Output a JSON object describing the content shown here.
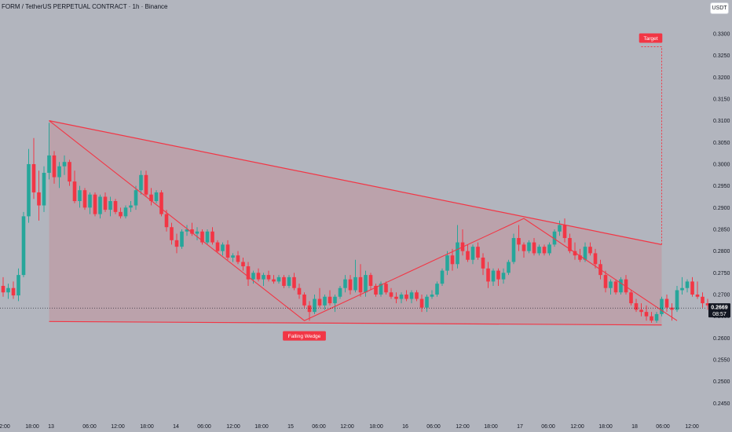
{
  "header": {
    "title": "FORM / TetherUS PERPETUAL CONTRACT · 1h · Binance",
    "currency_button": "USDT"
  },
  "colors": {
    "background": "#b2b5be",
    "up": "#26a69a",
    "down": "#f23645",
    "pattern_line": "#f23645",
    "pattern_fill": "rgba(242,54,69,0.15)",
    "price_tag": "#131722"
  },
  "chart_data": {
    "type": "candlestick",
    "symbol": "FORM / TetherUS PERPETUAL CONTRACT",
    "interval": "1h",
    "exchange": "Binance",
    "ylim": [
      0.242,
      0.3345
    ],
    "y_ticks": [
      "0.3300",
      "0.3250",
      "0.3200",
      "0.3150",
      "0.3100",
      "0.3050",
      "0.3000",
      "0.2950",
      "0.2900",
      "0.2850",
      "0.2800",
      "0.2750",
      "0.2700",
      "0.2650",
      "0.2600",
      "0.2550",
      "0.2500",
      "0.2450"
    ],
    "x_ticks": [
      "2:00",
      "18:00",
      "13",
      "06:00",
      "12:00",
      "18:00",
      "14",
      "06:00",
      "12:00",
      "18:00",
      "15",
      "06:00",
      "12:00",
      "18:00",
      "16",
      "06:00",
      "12:00",
      "18:00",
      "17",
      "06:00",
      "12:00",
      "18:00",
      "18",
      "06:00",
      "12:00"
    ],
    "last_price": "0.2669",
    "countdown": "08:57",
    "candles_ohlc": [
      [
        0.272,
        0.274,
        0.2695,
        0.2705
      ],
      [
        0.2705,
        0.2725,
        0.269,
        0.2715
      ],
      [
        0.2715,
        0.273,
        0.269,
        0.2698
      ],
      [
        0.2698,
        0.276,
        0.2685,
        0.2745
      ],
      [
        0.2745,
        0.289,
        0.274,
        0.288
      ],
      [
        0.288,
        0.3035,
        0.2865,
        0.3
      ],
      [
        0.3,
        0.306,
        0.292,
        0.2935
      ],
      [
        0.2935,
        0.2985,
        0.287,
        0.2905
      ],
      [
        0.2905,
        0.2995,
        0.289,
        0.298
      ],
      [
        0.298,
        0.3095,
        0.2965,
        0.302
      ],
      [
        0.302,
        0.303,
        0.2955,
        0.297
      ],
      [
        0.297,
        0.3005,
        0.2945,
        0.2995
      ],
      [
        0.2995,
        0.302,
        0.2975,
        0.3005
      ],
      [
        0.3005,
        0.301,
        0.295,
        0.296
      ],
      [
        0.296,
        0.2985,
        0.291,
        0.2915
      ],
      [
        0.2915,
        0.295,
        0.29,
        0.294
      ],
      [
        0.294,
        0.2945,
        0.2895,
        0.29
      ],
      [
        0.29,
        0.2935,
        0.2885,
        0.293
      ],
      [
        0.293,
        0.2935,
        0.288,
        0.2885
      ],
      [
        0.2885,
        0.293,
        0.2875,
        0.2925
      ],
      [
        0.2925,
        0.2935,
        0.289,
        0.2895
      ],
      [
        0.2895,
        0.2925,
        0.288,
        0.2915
      ],
      [
        0.2915,
        0.292,
        0.2885,
        0.289
      ],
      [
        0.289,
        0.29,
        0.2875,
        0.288
      ],
      [
        0.288,
        0.2905,
        0.2875,
        0.29
      ],
      [
        0.29,
        0.2915,
        0.289,
        0.2905
      ],
      [
        0.2905,
        0.295,
        0.2895,
        0.294
      ],
      [
        0.294,
        0.2985,
        0.293,
        0.2975
      ],
      [
        0.2975,
        0.2985,
        0.2925,
        0.293
      ],
      [
        0.293,
        0.2945,
        0.2905,
        0.2915
      ],
      [
        0.2915,
        0.294,
        0.291,
        0.2935
      ],
      [
        0.2935,
        0.294,
        0.288,
        0.2885
      ],
      [
        0.2885,
        0.2895,
        0.2845,
        0.2855
      ],
      [
        0.2855,
        0.2865,
        0.2815,
        0.2825
      ],
      [
        0.2825,
        0.284,
        0.2795,
        0.281
      ],
      [
        0.281,
        0.285,
        0.2805,
        0.2845
      ],
      [
        0.2845,
        0.286,
        0.2835,
        0.285
      ],
      [
        0.285,
        0.2865,
        0.2835,
        0.284
      ],
      [
        0.284,
        0.2855,
        0.2825,
        0.2845
      ],
      [
        0.2845,
        0.285,
        0.2815,
        0.282
      ],
      [
        0.282,
        0.285,
        0.2815,
        0.2845
      ],
      [
        0.2845,
        0.2855,
        0.2815,
        0.282
      ],
      [
        0.282,
        0.2825,
        0.2795,
        0.28
      ],
      [
        0.28,
        0.282,
        0.279,
        0.2815
      ],
      [
        0.2815,
        0.2825,
        0.278,
        0.2785
      ],
      [
        0.2785,
        0.2795,
        0.2775,
        0.279
      ],
      [
        0.279,
        0.28,
        0.277,
        0.2775
      ],
      [
        0.2775,
        0.2785,
        0.2755,
        0.2765
      ],
      [
        0.2765,
        0.2775,
        0.272,
        0.2735
      ],
      [
        0.2735,
        0.2755,
        0.2725,
        0.275
      ],
      [
        0.275,
        0.276,
        0.273,
        0.2735
      ],
      [
        0.2735,
        0.275,
        0.272,
        0.2745
      ],
      [
        0.2745,
        0.2755,
        0.273,
        0.2735
      ],
      [
        0.2735,
        0.2745,
        0.2725,
        0.273
      ],
      [
        0.273,
        0.2745,
        0.2725,
        0.274
      ],
      [
        0.274,
        0.2745,
        0.2715,
        0.272
      ],
      [
        0.272,
        0.2745,
        0.2715,
        0.274
      ],
      [
        0.274,
        0.275,
        0.271,
        0.2715
      ],
      [
        0.2715,
        0.2725,
        0.269,
        0.27
      ],
      [
        0.27,
        0.2705,
        0.267,
        0.2675
      ],
      [
        0.2675,
        0.2685,
        0.264,
        0.266
      ],
      [
        0.266,
        0.27,
        0.2655,
        0.269
      ],
      [
        0.269,
        0.2715,
        0.267,
        0.2675
      ],
      [
        0.2675,
        0.27,
        0.2665,
        0.2695
      ],
      [
        0.2695,
        0.271,
        0.2675,
        0.268
      ],
      [
        0.268,
        0.27,
        0.266,
        0.2695
      ],
      [
        0.2695,
        0.272,
        0.269,
        0.2715
      ],
      [
        0.2715,
        0.2745,
        0.2705,
        0.2735
      ],
      [
        0.2735,
        0.2745,
        0.27,
        0.271
      ],
      [
        0.271,
        0.278,
        0.2705,
        0.274
      ],
      [
        0.274,
        0.277,
        0.2695,
        0.2705
      ],
      [
        0.2705,
        0.2755,
        0.2695,
        0.2745
      ],
      [
        0.2745,
        0.275,
        0.271,
        0.272
      ],
      [
        0.272,
        0.2725,
        0.2695,
        0.27
      ],
      [
        0.27,
        0.273,
        0.2695,
        0.2725
      ],
      [
        0.2725,
        0.273,
        0.27,
        0.2705
      ],
      [
        0.2705,
        0.2715,
        0.269,
        0.2695
      ],
      [
        0.2695,
        0.2705,
        0.268,
        0.269
      ],
      [
        0.269,
        0.2705,
        0.268,
        0.27
      ],
      [
        0.27,
        0.271,
        0.2685,
        0.269
      ],
      [
        0.269,
        0.271,
        0.268,
        0.2705
      ],
      [
        0.2705,
        0.271,
        0.2685,
        0.269
      ],
      [
        0.269,
        0.27,
        0.266,
        0.267
      ],
      [
        0.267,
        0.27,
        0.266,
        0.2695
      ],
      [
        0.2695,
        0.271,
        0.269,
        0.27
      ],
      [
        0.27,
        0.273,
        0.2695,
        0.2725
      ],
      [
        0.2725,
        0.276,
        0.272,
        0.2755
      ],
      [
        0.2755,
        0.28,
        0.2745,
        0.279
      ],
      [
        0.279,
        0.2805,
        0.2755,
        0.277
      ],
      [
        0.277,
        0.286,
        0.276,
        0.282
      ],
      [
        0.282,
        0.285,
        0.279,
        0.28
      ],
      [
        0.28,
        0.2815,
        0.2775,
        0.278
      ],
      [
        0.278,
        0.2815,
        0.277,
        0.281
      ],
      [
        0.281,
        0.282,
        0.278,
        0.2785
      ],
      [
        0.2785,
        0.2795,
        0.2745,
        0.276
      ],
      [
        0.276,
        0.2775,
        0.2715,
        0.273
      ],
      [
        0.273,
        0.276,
        0.272,
        0.2755
      ],
      [
        0.2755,
        0.276,
        0.272,
        0.2735
      ],
      [
        0.2735,
        0.276,
        0.2725,
        0.275
      ],
      [
        0.275,
        0.278,
        0.2745,
        0.2775
      ],
      [
        0.2775,
        0.284,
        0.277,
        0.283
      ],
      [
        0.283,
        0.286,
        0.28,
        0.2815
      ],
      [
        0.2815,
        0.282,
        0.2785,
        0.28
      ],
      [
        0.28,
        0.2825,
        0.2795,
        0.282
      ],
      [
        0.282,
        0.283,
        0.279,
        0.2795
      ],
      [
        0.2795,
        0.2815,
        0.279,
        0.281
      ],
      [
        0.281,
        0.2815,
        0.279,
        0.2795
      ],
      [
        0.2795,
        0.282,
        0.279,
        0.2815
      ],
      [
        0.2815,
        0.285,
        0.281,
        0.2845
      ],
      [
        0.2845,
        0.287,
        0.2835,
        0.286
      ],
      [
        0.286,
        0.2875,
        0.282,
        0.283
      ],
      [
        0.283,
        0.284,
        0.2795,
        0.28
      ],
      [
        0.28,
        0.282,
        0.278,
        0.279
      ],
      [
        0.279,
        0.2805,
        0.2775,
        0.278
      ],
      [
        0.278,
        0.282,
        0.2775,
        0.281
      ],
      [
        0.281,
        0.282,
        0.279,
        0.2795
      ],
      [
        0.2795,
        0.2805,
        0.276,
        0.277
      ],
      [
        0.277,
        0.278,
        0.2735,
        0.2745
      ],
      [
        0.2745,
        0.2755,
        0.2705,
        0.2715
      ],
      [
        0.2715,
        0.2735,
        0.27,
        0.273
      ],
      [
        0.273,
        0.2735,
        0.27,
        0.2705
      ],
      [
        0.2705,
        0.274,
        0.27,
        0.2735
      ],
      [
        0.2735,
        0.2745,
        0.27,
        0.2705
      ],
      [
        0.2705,
        0.271,
        0.2675,
        0.268
      ],
      [
        0.268,
        0.269,
        0.266,
        0.2665
      ],
      [
        0.2665,
        0.268,
        0.265,
        0.266
      ],
      [
        0.266,
        0.2675,
        0.264,
        0.265
      ],
      [
        0.265,
        0.266,
        0.2635,
        0.264
      ],
      [
        0.264,
        0.266,
        0.2635,
        0.2655
      ],
      [
        0.2655,
        0.2695,
        0.265,
        0.269
      ],
      [
        0.269,
        0.27,
        0.266,
        0.267
      ],
      [
        0.267,
        0.268,
        0.264,
        0.2665
      ],
      [
        0.2665,
        0.272,
        0.266,
        0.271
      ],
      [
        0.271,
        0.274,
        0.27,
        0.2715
      ],
      [
        0.2715,
        0.2735,
        0.2705,
        0.273
      ],
      [
        0.273,
        0.274,
        0.2695,
        0.27
      ],
      [
        0.27,
        0.273,
        0.269,
        0.2695
      ],
      [
        0.2695,
        0.2705,
        0.267,
        0.268
      ],
      [
        0.268,
        0.269,
        0.2665,
        0.2675
      ],
      [
        0.2675,
        0.268,
        0.2655,
        0.2669
      ]
    ],
    "falling_wedge": {
      "upper_line": [
        [
          9,
          0.31
        ],
        [
          129,
          0.2815
        ]
      ],
      "lower_line": [
        [
          9,
          0.2638
        ],
        [
          129,
          0.263
        ]
      ],
      "wave_path": [
        [
          9,
          0.31
        ],
        [
          59,
          0.264
        ],
        [
          102,
          0.2875
        ],
        [
          132,
          0.264
        ]
      ],
      "target": [
        [
          129,
          0.2815
        ],
        [
          129,
          0.327
        ]
      ]
    },
    "annotations": [
      {
        "label": "Falling Wedge",
        "candle": 59,
        "price": 0.2605
      },
      {
        "label": "Target",
        "candle": 129,
        "price": 0.329
      }
    ]
  }
}
